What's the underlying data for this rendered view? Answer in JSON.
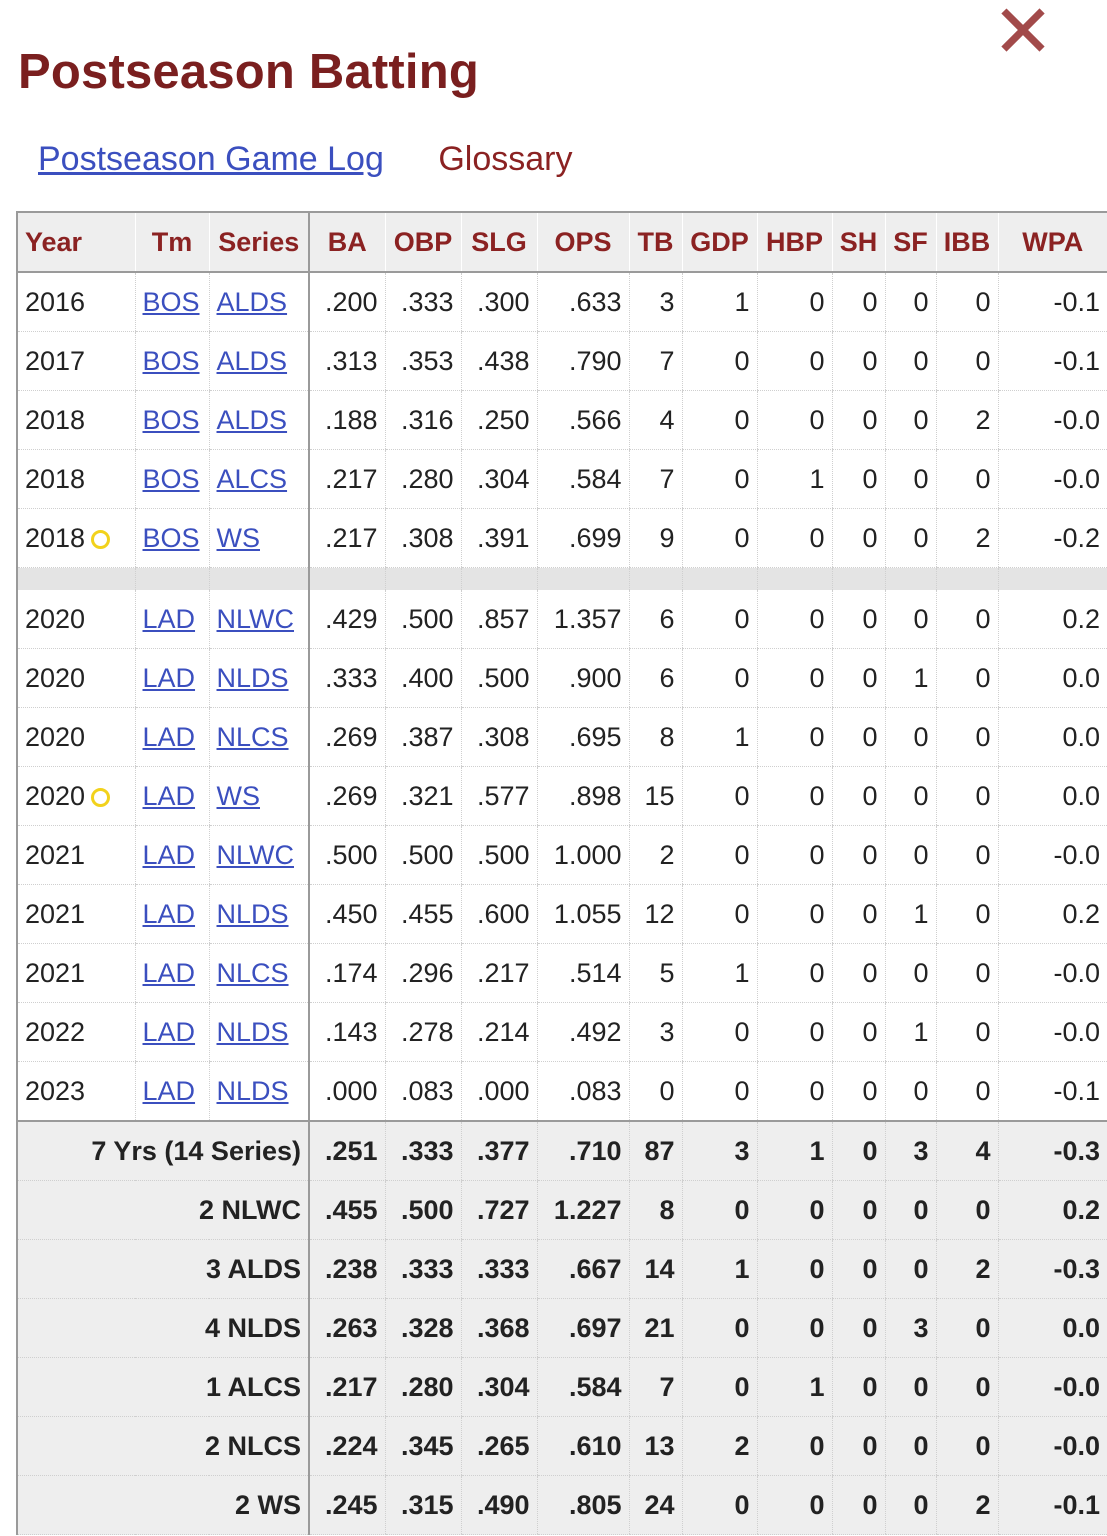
{
  "page": {
    "title": "Postseason Batting",
    "close_glyph": "✕",
    "links": {
      "game_log": "Postseason Game Log",
      "glossary": "Glossary"
    }
  },
  "colors": {
    "title": "#7a1f1f",
    "link": "#3b4fbf",
    "header_text": "#8b2222",
    "trophy": "#f2d21c",
    "close": "#a24a4a"
  },
  "table": {
    "headers": [
      "Year",
      "Tm",
      "Series",
      "BA",
      "OBP",
      "SLG",
      "OPS",
      "TB",
      "GDP",
      "HBP",
      "SH",
      "SF",
      "IBB",
      "WPA"
    ],
    "rows": [
      {
        "year": "2016",
        "tm": "BOS",
        "series": "ALDS",
        "ba": ".200",
        "obp": ".333",
        "slg": ".300",
        "ops": ".633",
        "tb": "3",
        "gdp": "1",
        "hbp": "0",
        "sh": "0",
        "sf": "0",
        "ibb": "0",
        "wpa": "-0.1"
      },
      {
        "year": "2017",
        "tm": "BOS",
        "series": "ALDS",
        "ba": ".313",
        "obp": ".353",
        "slg": ".438",
        "ops": ".790",
        "tb": "7",
        "gdp": "0",
        "hbp": "0",
        "sh": "0",
        "sf": "0",
        "ibb": "0",
        "wpa": "-0.1"
      },
      {
        "year": "2018",
        "tm": "BOS",
        "series": "ALDS",
        "ba": ".188",
        "obp": ".316",
        "slg": ".250",
        "ops": ".566",
        "tb": "4",
        "gdp": "0",
        "hbp": "0",
        "sh": "0",
        "sf": "0",
        "ibb": "2",
        "wpa": "-0.0"
      },
      {
        "year": "2018",
        "tm": "BOS",
        "series": "ALCS",
        "ba": ".217",
        "obp": ".280",
        "slg": ".304",
        "ops": ".584",
        "tb": "7",
        "gdp": "0",
        "hbp": "1",
        "sh": "0",
        "sf": "0",
        "ibb": "0",
        "wpa": "-0.0"
      },
      {
        "year": "2018",
        "trophy": true,
        "tm": "BOS",
        "series": "WS",
        "ba": ".217",
        "obp": ".308",
        "slg": ".391",
        "ops": ".699",
        "tb": "9",
        "gdp": "0",
        "hbp": "0",
        "sh": "0",
        "sf": "0",
        "ibb": "2",
        "wpa": "-0.2"
      },
      {
        "spacer": true
      },
      {
        "year": "2020",
        "tm": "LAD",
        "series": "NLWC",
        "ba": ".429",
        "obp": ".500",
        "slg": ".857",
        "ops": "1.357",
        "tb": "6",
        "gdp": "0",
        "hbp": "0",
        "sh": "0",
        "sf": "0",
        "ibb": "0",
        "wpa": "0.2"
      },
      {
        "year": "2020",
        "tm": "LAD",
        "series": "NLDS",
        "ba": ".333",
        "obp": ".400",
        "slg": ".500",
        "ops": ".900",
        "tb": "6",
        "gdp": "0",
        "hbp": "0",
        "sh": "0",
        "sf": "1",
        "ibb": "0",
        "wpa": "0.0"
      },
      {
        "year": "2020",
        "tm": "LAD",
        "series": "NLCS",
        "ba": ".269",
        "obp": ".387",
        "slg": ".308",
        "ops": ".695",
        "tb": "8",
        "gdp": "1",
        "hbp": "0",
        "sh": "0",
        "sf": "0",
        "ibb": "0",
        "wpa": "0.0"
      },
      {
        "year": "2020",
        "trophy": true,
        "tm": "LAD",
        "series": "WS",
        "ba": ".269",
        "obp": ".321",
        "slg": ".577",
        "ops": ".898",
        "tb": "15",
        "gdp": "0",
        "hbp": "0",
        "sh": "0",
        "sf": "0",
        "ibb": "0",
        "wpa": "0.0"
      },
      {
        "year": "2021",
        "tm": "LAD",
        "series": "NLWC",
        "ba": ".500",
        "obp": ".500",
        "slg": ".500",
        "ops": "1.000",
        "tb": "2",
        "gdp": "0",
        "hbp": "0",
        "sh": "0",
        "sf": "0",
        "ibb": "0",
        "wpa": "-0.0"
      },
      {
        "year": "2021",
        "tm": "LAD",
        "series": "NLDS",
        "ba": ".450",
        "obp": ".455",
        "slg": ".600",
        "ops": "1.055",
        "tb": "12",
        "gdp": "0",
        "hbp": "0",
        "sh": "0",
        "sf": "1",
        "ibb": "0",
        "wpa": "0.2"
      },
      {
        "year": "2021",
        "tm": "LAD",
        "series": "NLCS",
        "ba": ".174",
        "obp": ".296",
        "slg": ".217",
        "ops": ".514",
        "tb": "5",
        "gdp": "1",
        "hbp": "0",
        "sh": "0",
        "sf": "0",
        "ibb": "0",
        "wpa": "-0.0"
      },
      {
        "year": "2022",
        "tm": "LAD",
        "series": "NLDS",
        "ba": ".143",
        "obp": ".278",
        "slg": ".214",
        "ops": ".492",
        "tb": "3",
        "gdp": "0",
        "hbp": "0",
        "sh": "0",
        "sf": "1",
        "ibb": "0",
        "wpa": "-0.0"
      },
      {
        "year": "2023",
        "tm": "LAD",
        "series": "NLDS",
        "ba": ".000",
        "obp": ".083",
        "slg": ".000",
        "ops": ".083",
        "tb": "0",
        "gdp": "0",
        "hbp": "0",
        "sh": "0",
        "sf": "0",
        "ibb": "0",
        "wpa": "-0.1"
      }
    ],
    "totals": [
      {
        "label": "7 Yrs (14 Series)",
        "ba": ".251",
        "obp": ".333",
        "slg": ".377",
        "ops": ".710",
        "tb": "87",
        "gdp": "3",
        "hbp": "1",
        "sh": "0",
        "sf": "3",
        "ibb": "4",
        "wpa": "-0.3"
      },
      {
        "label": "2 NLWC",
        "ba": ".455",
        "obp": ".500",
        "slg": ".727",
        "ops": "1.227",
        "tb": "8",
        "gdp": "0",
        "hbp": "0",
        "sh": "0",
        "sf": "0",
        "ibb": "0",
        "wpa": "0.2"
      },
      {
        "label": "3 ALDS",
        "ba": ".238",
        "obp": ".333",
        "slg": ".333",
        "ops": ".667",
        "tb": "14",
        "gdp": "1",
        "hbp": "0",
        "sh": "0",
        "sf": "0",
        "ibb": "2",
        "wpa": "-0.3"
      },
      {
        "label": "4 NLDS",
        "ba": ".263",
        "obp": ".328",
        "slg": ".368",
        "ops": ".697",
        "tb": "21",
        "gdp": "0",
        "hbp": "0",
        "sh": "0",
        "sf": "3",
        "ibb": "0",
        "wpa": "0.0"
      },
      {
        "label": "1 ALCS",
        "ba": ".217",
        "obp": ".280",
        "slg": ".304",
        "ops": ".584",
        "tb": "7",
        "gdp": "0",
        "hbp": "1",
        "sh": "0",
        "sf": "0",
        "ibb": "0",
        "wpa": "-0.0"
      },
      {
        "label": "2 NLCS",
        "ba": ".224",
        "obp": ".345",
        "slg": ".265",
        "ops": ".610",
        "tb": "13",
        "gdp": "2",
        "hbp": "0",
        "sh": "0",
        "sf": "0",
        "ibb": "0",
        "wpa": "-0.0"
      },
      {
        "label": "2 WS",
        "ba": ".245",
        "obp": ".315",
        "slg": ".490",
        "ops": ".805",
        "tb": "24",
        "gdp": "0",
        "hbp": "0",
        "sh": "0",
        "sf": "0",
        "ibb": "2",
        "wpa": "-0.1"
      }
    ]
  }
}
